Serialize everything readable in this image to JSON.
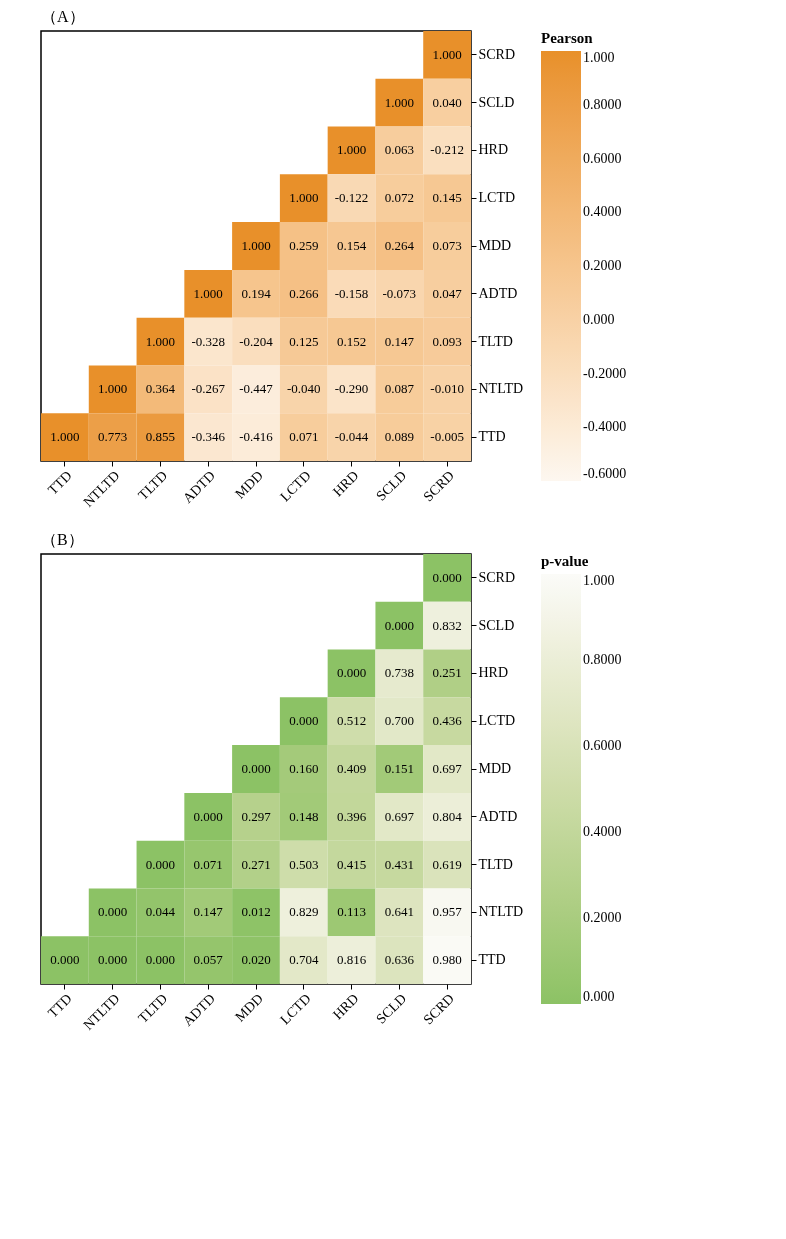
{
  "chart_data": [
    {
      "type": "heatmap",
      "title": "（A）",
      "legend_title": "Pearson",
      "categories": [
        "TTD",
        "NTLTD",
        "TLTD",
        "ADTD",
        "MDD",
        "LCTD",
        "HRD",
        "SCLD",
        "SCRD"
      ],
      "y_categories": [
        "SCRD",
        "SCLD",
        "HRD",
        "LCTD",
        "MDD",
        "ADTD",
        "TLTD",
        "NTLTD",
        "TTD"
      ],
      "cells": [
        [
          null,
          null,
          null,
          null,
          null,
          null,
          null,
          null,
          1.0
        ],
        [
          null,
          null,
          null,
          null,
          null,
          null,
          null,
          1.0,
          0.04
        ],
        [
          null,
          null,
          null,
          null,
          null,
          null,
          1.0,
          0.063,
          -0.212
        ],
        [
          null,
          null,
          null,
          null,
          null,
          1.0,
          -0.122,
          0.072,
          0.145
        ],
        [
          null,
          null,
          null,
          null,
          1.0,
          0.259,
          0.154,
          0.264,
          0.073
        ],
        [
          null,
          null,
          null,
          1.0,
          0.194,
          0.266,
          -0.158,
          -0.073,
          0.047
        ],
        [
          null,
          null,
          1.0,
          -0.328,
          -0.204,
          0.125,
          0.152,
          0.147,
          0.093
        ],
        [
          null,
          1.0,
          0.364,
          -0.267,
          -0.447,
          -0.04,
          -0.29,
          0.087,
          -0.01
        ],
        [
          1.0,
          0.773,
          0.855,
          -0.346,
          -0.416,
          0.071,
          -0.044,
          0.089,
          -0.005
        ]
      ],
      "cell_labels": [
        [
          null,
          null,
          null,
          null,
          null,
          null,
          null,
          null,
          "1.000"
        ],
        [
          null,
          null,
          null,
          null,
          null,
          null,
          null,
          "1.000",
          "0.040"
        ],
        [
          null,
          null,
          null,
          null,
          null,
          null,
          "1.000",
          "0.063",
          "-0.212"
        ],
        [
          null,
          null,
          null,
          null,
          null,
          "1.000",
          "-0.122",
          "0.072",
          "0.145"
        ],
        [
          null,
          null,
          null,
          null,
          "1.000",
          "0.259",
          "0.154",
          "0.264",
          "0.073"
        ],
        [
          null,
          null,
          null,
          "1.000",
          "0.194",
          "0.266",
          "-0.158",
          "-0.073",
          "0.047"
        ],
        [
          null,
          null,
          "1.000",
          "-0.328",
          "-0.204",
          "0.125",
          "0.152",
          "0.147",
          "0.093"
        ],
        [
          null,
          "1.000",
          "0.364",
          "-0.267",
          "-0.447",
          "-0.040",
          "-0.290",
          "0.087",
          "-0.010"
        ],
        [
          "1.000",
          "0.773",
          "0.855",
          "-0.346",
          "-0.416",
          "0.071",
          "-0.044",
          "0.089",
          "-0.005"
        ]
      ],
      "clim": [
        -0.6,
        1.0
      ],
      "cticks": [
        {
          "value": 1.0,
          "label": "1.000"
        },
        {
          "value": 0.8,
          "label": "0.8000"
        },
        {
          "value": 0.6,
          "label": "0.6000"
        },
        {
          "value": 0.4,
          "label": "0.4000"
        },
        {
          "value": 0.2,
          "label": "0.2000"
        },
        {
          "value": 0.0,
          "label": "0.000"
        },
        {
          "value": -0.2,
          "label": "-0.2000"
        },
        {
          "value": -0.4,
          "label": "-0.4000"
        },
        {
          "value": -0.6,
          "label": "-0.6000"
        }
      ]
    },
    {
      "type": "heatmap",
      "title": "（B）",
      "legend_title": "p-value",
      "categories": [
        "TTD",
        "NTLTD",
        "TLTD",
        "ADTD",
        "MDD",
        "LCTD",
        "HRD",
        "SCLD",
        "SCRD"
      ],
      "y_categories": [
        "SCRD",
        "SCLD",
        "HRD",
        "LCTD",
        "MDD",
        "ADTD",
        "TLTD",
        "NTLTD",
        "TTD"
      ],
      "cells": [
        [
          null,
          null,
          null,
          null,
          null,
          null,
          null,
          null,
          0.0
        ],
        [
          null,
          null,
          null,
          null,
          null,
          null,
          null,
          0.0,
          0.832
        ],
        [
          null,
          null,
          null,
          null,
          null,
          null,
          0.0,
          0.738,
          0.251
        ],
        [
          null,
          null,
          null,
          null,
          null,
          0.0,
          0.512,
          0.7,
          0.436
        ],
        [
          null,
          null,
          null,
          null,
          0.0,
          0.16,
          0.409,
          0.151,
          0.697
        ],
        [
          null,
          null,
          null,
          0.0,
          0.297,
          0.148,
          0.396,
          0.697,
          0.804
        ],
        [
          null,
          null,
          0.0,
          0.071,
          0.271,
          0.503,
          0.415,
          0.431,
          0.619
        ],
        [
          null,
          0.0,
          0.044,
          0.147,
          0.012,
          0.829,
          0.113,
          0.641,
          0.957
        ],
        [
          0.0,
          0.0,
          0.0,
          0.057,
          0.02,
          0.704,
          0.816,
          0.636,
          0.98
        ]
      ],
      "cell_labels": [
        [
          null,
          null,
          null,
          null,
          null,
          null,
          null,
          null,
          "0.000"
        ],
        [
          null,
          null,
          null,
          null,
          null,
          null,
          null,
          "0.000",
          "0.832"
        ],
        [
          null,
          null,
          null,
          null,
          null,
          null,
          "0.000",
          "0.738",
          "0.251"
        ],
        [
          null,
          null,
          null,
          null,
          null,
          "0.000",
          "0.512",
          "0.700",
          "0.436"
        ],
        [
          null,
          null,
          null,
          null,
          "0.000",
          "0.160",
          "0.409",
          "0.151",
          "0.697"
        ],
        [
          null,
          null,
          null,
          "0.000",
          "0.297",
          "0.148",
          "0.396",
          "0.697",
          "0.804"
        ],
        [
          null,
          null,
          "0.000",
          "0.071",
          "0.271",
          "0.503",
          "0.415",
          "0.431",
          "0.619"
        ],
        [
          null,
          "0.000",
          "0.044",
          "0.147",
          "0.012",
          "0.829",
          "0.113",
          "0.641",
          "0.957"
        ],
        [
          "0.000",
          "0.000",
          "0.000",
          "0.057",
          "0.020",
          "0.704",
          "0.816",
          "0.636",
          "0.980"
        ]
      ],
      "clim": [
        0.0,
        1.0
      ],
      "cticks": [
        {
          "value": 1.0,
          "label": "1.000"
        },
        {
          "value": 0.8,
          "label": "0.8000"
        },
        {
          "value": 0.6,
          "label": "0.6000"
        },
        {
          "value": 0.4,
          "label": "0.4000"
        },
        {
          "value": 0.2,
          "label": "0.2000"
        },
        {
          "value": 0.0,
          "label": "0.000"
        }
      ]
    }
  ]
}
